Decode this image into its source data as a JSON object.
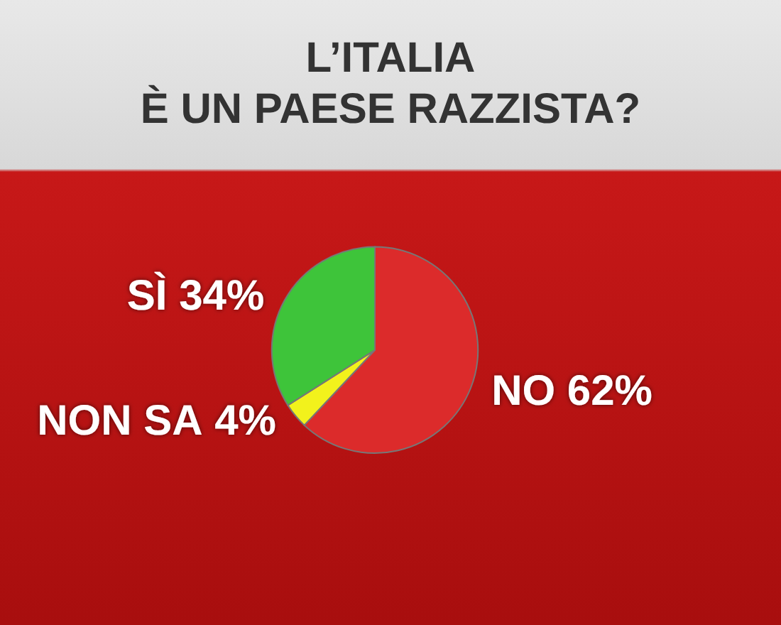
{
  "chart_data": {
    "type": "pie",
    "title": "L’ITALIA\nÈ UN PAESE RAZZISTA?",
    "categories": [
      "NO",
      "NON SA",
      "SÌ"
    ],
    "values": [
      62,
      4,
      34
    ],
    "value_labels": [
      "62%",
      "4%",
      "34%"
    ],
    "colors": [
      "#dc2b2b",
      "#f2f21c",
      "#3ec43a"
    ],
    "legend": false
  }
}
